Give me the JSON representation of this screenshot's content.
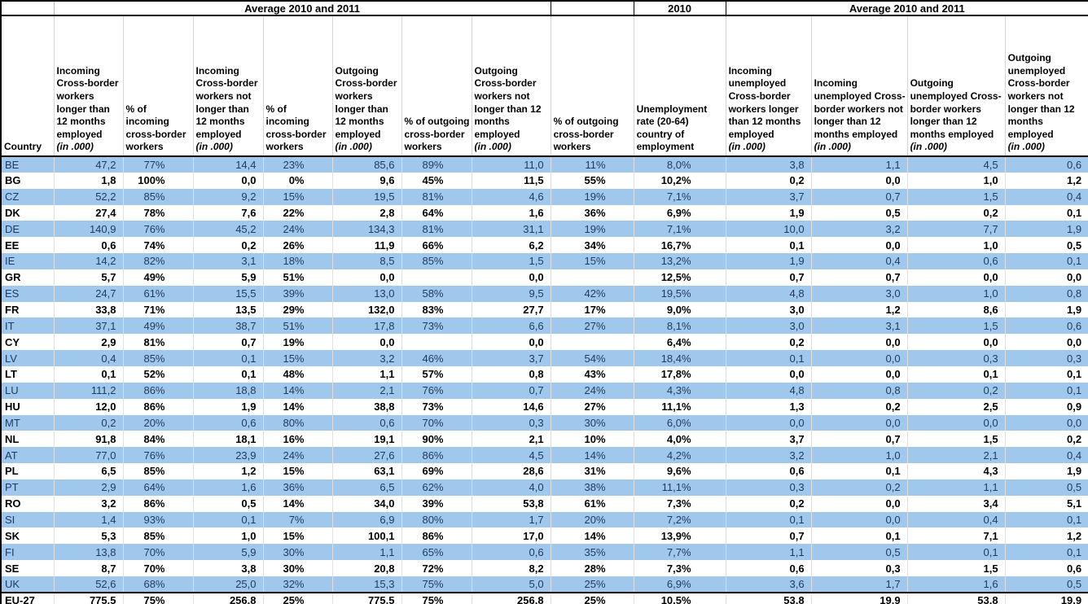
{
  "colors": {
    "row_stripe_blue": "#A0C8EC",
    "row_text_blue": "#1F3A5F",
    "row_text_bold": "#000000",
    "border_black": "#000000",
    "gridline_gray": "#D6D6D6"
  },
  "table": {
    "top_headers": [
      {
        "label": "",
        "span": 1
      },
      {
        "label": "Average 2010 and 2011",
        "span": 7
      },
      {
        "label": "",
        "span": 1
      },
      {
        "label": "2010",
        "span": 1
      },
      {
        "label": "Average 2010 and 2011",
        "span": 4
      }
    ],
    "columns": [
      {
        "label": "Country",
        "unit": "",
        "type": "country"
      },
      {
        "label": "Incoming Cross-border workers longer than 12 months employed",
        "unit": "(in .000)",
        "type": "num"
      },
      {
        "label": "% of incoming cross-border workers",
        "unit": "",
        "type": "pct"
      },
      {
        "label": "Incoming Cross-border workers not longer than 12 months employed",
        "unit": "(in .000)",
        "type": "num"
      },
      {
        "label": "% of incoming cross-border workers",
        "unit": "",
        "type": "pct"
      },
      {
        "label": "Outgoing Cross-border workers longer than 12 months employed",
        "unit": "(in .000)",
        "type": "num"
      },
      {
        "label": "% of outgoing cross-border workers",
        "unit": "",
        "type": "pct"
      },
      {
        "label": "Outgoing Cross-border workers not longer than 12 months employed",
        "unit": "(in .000)",
        "type": "num"
      },
      {
        "label": "% of outgoing cross-border workers",
        "unit": "",
        "type": "pct"
      },
      {
        "label": "Unemployment rate (20-64) country of employment",
        "unit": "",
        "type": "unemp"
      },
      {
        "label": "Incoming unemployed Cross-border workers longer than 12 months employed",
        "unit": "(in .000)",
        "type": "num"
      },
      {
        "label": "Incoming unemployed Cross-border workers not longer than 12 months employed",
        "unit": "(in .000)",
        "type": "num"
      },
      {
        "label": "Outgoing unemployed Cross-border workers longer than 12 months employed",
        "unit": "(in .000)",
        "type": "num"
      },
      {
        "label": "Outgoing unemployed Cross-border workers not longer than 12 months employed",
        "unit": "(in .000)",
        "type": "num"
      }
    ],
    "rows": [
      {
        "country": "BE",
        "values": [
          "47,2",
          "77%",
          "14,4",
          "23%",
          "85,6",
          "89%",
          "11,0",
          "11%",
          "8,0%",
          "3,8",
          "1,1",
          "4,5",
          "0,6"
        ]
      },
      {
        "country": "BG",
        "values": [
          "1,8",
          "100%",
          "0,0",
          "0%",
          "9,6",
          "45%",
          "11,5",
          "55%",
          "10,2%",
          "0,2",
          "0,0",
          "1,0",
          "1,2"
        ]
      },
      {
        "country": "CZ",
        "values": [
          "52,2",
          "85%",
          "9,2",
          "15%",
          "19,5",
          "81%",
          "4,6",
          "19%",
          "7,1%",
          "3,7",
          "0,7",
          "1,5",
          "0,4"
        ]
      },
      {
        "country": "DK",
        "values": [
          "27,4",
          "78%",
          "7,6",
          "22%",
          "2,8",
          "64%",
          "1,6",
          "36%",
          "6,9%",
          "1,9",
          "0,5",
          "0,2",
          "0,1"
        ]
      },
      {
        "country": "DE",
        "values": [
          "140,9",
          "76%",
          "45,2",
          "24%",
          "134,3",
          "81%",
          "31,1",
          "19%",
          "7,1%",
          "10,0",
          "3,2",
          "7,7",
          "1,9"
        ]
      },
      {
        "country": "EE",
        "values": [
          "0,6",
          "74%",
          "0,2",
          "26%",
          "11,9",
          "66%",
          "6,2",
          "34%",
          "16,7%",
          "0,1",
          "0,0",
          "1,0",
          "0,5"
        ]
      },
      {
        "country": "IE",
        "values": [
          "14,2",
          "82%",
          "3,1",
          "18%",
          "8,5",
          "85%",
          "1,5",
          "15%",
          "13,2%",
          "1,9",
          "0,4",
          "0,6",
          "0,1"
        ]
      },
      {
        "country": "GR",
        "values": [
          "5,7",
          "49%",
          "5,9",
          "51%",
          "0,0",
          "",
          "0,0",
          "",
          "12,5%",
          "0,7",
          "0,7",
          "0,0",
          "0,0"
        ]
      },
      {
        "country": "ES",
        "values": [
          "24,7",
          "61%",
          "15,5",
          "39%",
          "13,0",
          "58%",
          "9,5",
          "42%",
          "19,5%",
          "4,8",
          "3,0",
          "1,0",
          "0,8"
        ]
      },
      {
        "country": "FR",
        "values": [
          "33,8",
          "71%",
          "13,5",
          "29%",
          "132,0",
          "83%",
          "27,7",
          "17%",
          "9,0%",
          "3,0",
          "1,2",
          "8,6",
          "1,9"
        ]
      },
      {
        "country": "IT",
        "values": [
          "37,1",
          "49%",
          "38,7",
          "51%",
          "17,8",
          "73%",
          "6,6",
          "27%",
          "8,1%",
          "3,0",
          "3,1",
          "1,5",
          "0,6"
        ]
      },
      {
        "country": "CY",
        "values": [
          "2,9",
          "81%",
          "0,7",
          "19%",
          "0,0",
          "",
          "0,0",
          "",
          "6,4%",
          "0,2",
          "0,0",
          "0,0",
          "0,0"
        ]
      },
      {
        "country": "LV",
        "values": [
          "0,4",
          "85%",
          "0,1",
          "15%",
          "3,2",
          "46%",
          "3,7",
          "54%",
          "18,4%",
          "0,1",
          "0,0",
          "0,3",
          "0,3"
        ]
      },
      {
        "country": "LT",
        "values": [
          "0,1",
          "52%",
          "0,1",
          "48%",
          "1,1",
          "57%",
          "0,8",
          "43%",
          "17,8%",
          "0,0",
          "0,0",
          "0,1",
          "0,1"
        ]
      },
      {
        "country": "LU",
        "values": [
          "111,2",
          "86%",
          "18,8",
          "14%",
          "2,1",
          "76%",
          "0,7",
          "24%",
          "4,3%",
          "4,8",
          "0,8",
          "0,2",
          "0,1"
        ]
      },
      {
        "country": "HU",
        "values": [
          "12,0",
          "86%",
          "1,9",
          "14%",
          "38,8",
          "73%",
          "14,6",
          "27%",
          "11,1%",
          "1,3",
          "0,2",
          "2,5",
          "0,9"
        ]
      },
      {
        "country": "MT",
        "values": [
          "0,2",
          "20%",
          "0,6",
          "80%",
          "0,6",
          "70%",
          "0,3",
          "30%",
          "6,0%",
          "0,0",
          "0,0",
          "0,0",
          "0,0"
        ]
      },
      {
        "country": "NL",
        "values": [
          "91,8",
          "84%",
          "18,1",
          "16%",
          "19,1",
          "90%",
          "2,1",
          "10%",
          "4,0%",
          "3,7",
          "0,7",
          "1,5",
          "0,2"
        ]
      },
      {
        "country": "AT",
        "values": [
          "77,0",
          "76%",
          "23,9",
          "24%",
          "27,6",
          "86%",
          "4,5",
          "14%",
          "4,2%",
          "3,2",
          "1,0",
          "2,1",
          "0,4"
        ]
      },
      {
        "country": "PL",
        "values": [
          "6,5",
          "85%",
          "1,2",
          "15%",
          "63,1",
          "69%",
          "28,6",
          "31%",
          "9,6%",
          "0,6",
          "0,1",
          "4,3",
          "1,9"
        ]
      },
      {
        "country": "PT",
        "values": [
          "2,9",
          "64%",
          "1,6",
          "36%",
          "6,5",
          "62%",
          "4,0",
          "38%",
          "11,1%",
          "0,3",
          "0,2",
          "1,1",
          "0,5"
        ]
      },
      {
        "country": "RO",
        "values": [
          "3,2",
          "86%",
          "0,5",
          "14%",
          "34,0",
          "39%",
          "53,8",
          "61%",
          "7,3%",
          "0,2",
          "0,0",
          "3,4",
          "5,1"
        ]
      },
      {
        "country": "SI",
        "values": [
          "1,4",
          "93%",
          "0,1",
          "7%",
          "6,9",
          "80%",
          "1,7",
          "20%",
          "7,2%",
          "0,1",
          "0,0",
          "0,4",
          "0,1"
        ]
      },
      {
        "country": "SK",
        "values": [
          "5,3",
          "85%",
          "1,0",
          "15%",
          "100,1",
          "86%",
          "17,0",
          "14%",
          "13,9%",
          "0,7",
          "0,1",
          "7,1",
          "1,2"
        ]
      },
      {
        "country": "FI",
        "values": [
          "13,8",
          "70%",
          "5,9",
          "30%",
          "1,1",
          "65%",
          "0,6",
          "35%",
          "7,7%",
          "1,1",
          "0,5",
          "0,1",
          "0,1"
        ]
      },
      {
        "country": "SE",
        "values": [
          "8,7",
          "70%",
          "3,8",
          "30%",
          "20,8",
          "72%",
          "8,2",
          "28%",
          "7,3%",
          "0,6",
          "0,3",
          "1,5",
          "0,6"
        ]
      },
      {
        "country": "UK",
        "values": [
          "52,6",
          "68%",
          "25,0",
          "32%",
          "15,3",
          "75%",
          "5,0",
          "25%",
          "6,9%",
          "3,6",
          "1,7",
          "1,6",
          "0,5"
        ]
      },
      {
        "country": "EU-27",
        "values": [
          "775,5",
          "75%",
          "256,8",
          "25%",
          "775,5",
          "75%",
          "256,8",
          "25%",
          "10,5%",
          "53,8",
          "19,9",
          "53,8",
          "19,9"
        ]
      }
    ]
  }
}
